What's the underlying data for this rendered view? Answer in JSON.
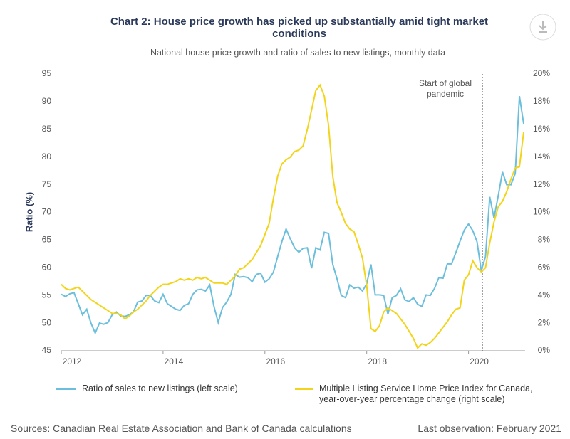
{
  "chart_data": {
    "type": "line",
    "title": "Chart 2: House price growth has picked up substantially amid tight market conditions",
    "subtitle": "National house price growth and ratio of sales to new listings, monthly data",
    "y_label": "Ratio (%)",
    "annotation": "Start of global pandemic",
    "source": "Sources: Canadian Real Estate Association and Bank of Canada calculations",
    "last_observation": "Last observation: February 2021",
    "categories": [
      "2012",
      null,
      null,
      null,
      null,
      null,
      null,
      null,
      null,
      null,
      null,
      null,
      null,
      null,
      null,
      null,
      null,
      null,
      null,
      null,
      null,
      null,
      null,
      null,
      "2014",
      null,
      null,
      null,
      null,
      null,
      null,
      null,
      null,
      null,
      null,
      null,
      null,
      null,
      null,
      null,
      null,
      null,
      null,
      null,
      null,
      null,
      null,
      null,
      "2016",
      null,
      null,
      null,
      null,
      null,
      null,
      null,
      null,
      null,
      null,
      null,
      null,
      null,
      null,
      null,
      null,
      null,
      null,
      null,
      null,
      null,
      null,
      null,
      "2018",
      null,
      null,
      null,
      null,
      null,
      null,
      null,
      null,
      null,
      null,
      null,
      null,
      null,
      null,
      null,
      null,
      null,
      null,
      null,
      null,
      null,
      null,
      null,
      "2020",
      null,
      null,
      null,
      null,
      null,
      null,
      null,
      null,
      null,
      null,
      null,
      null,
      null
    ],
    "ylim": [
      45,
      95
    ],
    "yticks": [
      45,
      50,
      55,
      60,
      65,
      70,
      75,
      80,
      85,
      90,
      95
    ],
    "y2lim": [
      0,
      20
    ],
    "y2ticks": [
      {
        "value": 0,
        "label": "0%"
      },
      {
        "value": 2,
        "label": "2%"
      },
      {
        "value": 4,
        "label": "4%"
      },
      {
        "value": 6,
        "label": "6%"
      },
      {
        "value": 8,
        "label": "8%"
      },
      {
        "value": 10,
        "label": "10%"
      },
      {
        "value": 12,
        "label": "12%"
      },
      {
        "value": 14,
        "label": "14%"
      },
      {
        "value": 16,
        "label": "16%"
      },
      {
        "value": 18,
        "label": "18%"
      },
      {
        "value": 20,
        "label": "20%"
      }
    ],
    "series": [
      {
        "name": "Ratio of sales to new listings (left scale)",
        "color": "#6cbfdc",
        "values": [
          55.2,
          54.8,
          55.3,
          55.5,
          53.5,
          51.5,
          52.5,
          50,
          48.2,
          50,
          49.8,
          50.1,
          51.5,
          52,
          51.3,
          51.2,
          51.5,
          52,
          53.8,
          54,
          55,
          55,
          54,
          53.7,
          55.2,
          53.5,
          53,
          52.5,
          52.3,
          53.2,
          53.5,
          55.2,
          56,
          56.1,
          55.8,
          56.9,
          53,
          50.1,
          52.8,
          53.8,
          55.2,
          58.8,
          58.3,
          58.4,
          58.2,
          57.5,
          58.8,
          59,
          57.4,
          58,
          59.2,
          62,
          64.7,
          67,
          65.2,
          63.6,
          62.8,
          63.5,
          63.6,
          59.9,
          63.6,
          63.2,
          66.4,
          66.2,
          60.6,
          58,
          55,
          54.6,
          56.9,
          56.3,
          56.5,
          55.8,
          57.1,
          60.6,
          55.1,
          55.1,
          55,
          51.6,
          54.6,
          55,
          56.2,
          54.2,
          53.9,
          54.6,
          53.4,
          53,
          55.1,
          55,
          56.3,
          58.2,
          58.1,
          60.7,
          60.7,
          62.7,
          64.8,
          66.8,
          67.9,
          66.7,
          64.7,
          59.5,
          62,
          72.8,
          69,
          73,
          77.3,
          75,
          75,
          77,
          91,
          86
        ]
      },
      {
        "name": "Multiple Listing Service Home Price Index for Canada, year-over-year percentage change (right scale)",
        "color": "#f2d51a",
        "axis": "y2",
        "values": [
          4.8,
          4.5,
          4.4,
          4.5,
          4.6,
          4.3,
          4.0,
          3.7,
          3.5,
          3.3,
          3.1,
          2.9,
          2.7,
          2.7,
          2.6,
          2.3,
          2.5,
          2.8,
          3.0,
          3.3,
          3.6,
          4.0,
          4.3,
          4.6,
          4.8,
          4.8,
          4.9,
          5.0,
          5.2,
          5.1,
          5.2,
          5.1,
          5.3,
          5.2,
          5.3,
          5.1,
          4.9,
          4.9,
          4.9,
          4.8,
          5.1,
          5.4,
          5.9,
          6.0,
          6.3,
          6.6,
          7.1,
          7.6,
          8.4,
          9.2,
          11.0,
          12.6,
          13.5,
          13.8,
          14.0,
          14.4,
          14.5,
          14.8,
          16.0,
          17.4,
          18.8,
          19.2,
          18.4,
          16.3,
          12.6,
          10.7,
          10.0,
          9.2,
          8.8,
          8.6,
          7.7,
          6.7,
          4.7,
          1.6,
          1.4,
          1.8,
          2.8,
          3.1,
          2.9,
          2.7,
          2.3,
          1.9,
          1.4,
          0.9,
          0.2,
          0.5,
          0.4,
          0.6,
          0.9,
          1.3,
          1.7,
          2.1,
          2.6,
          3.0,
          3.1,
          5.1,
          5.5,
          6.5,
          6.0,
          5.7,
          6.0,
          7.8,
          9.3,
          10.4,
          10.8,
          11.5,
          12.4,
          13.2,
          13.3,
          15.8
        ]
      }
    ]
  }
}
